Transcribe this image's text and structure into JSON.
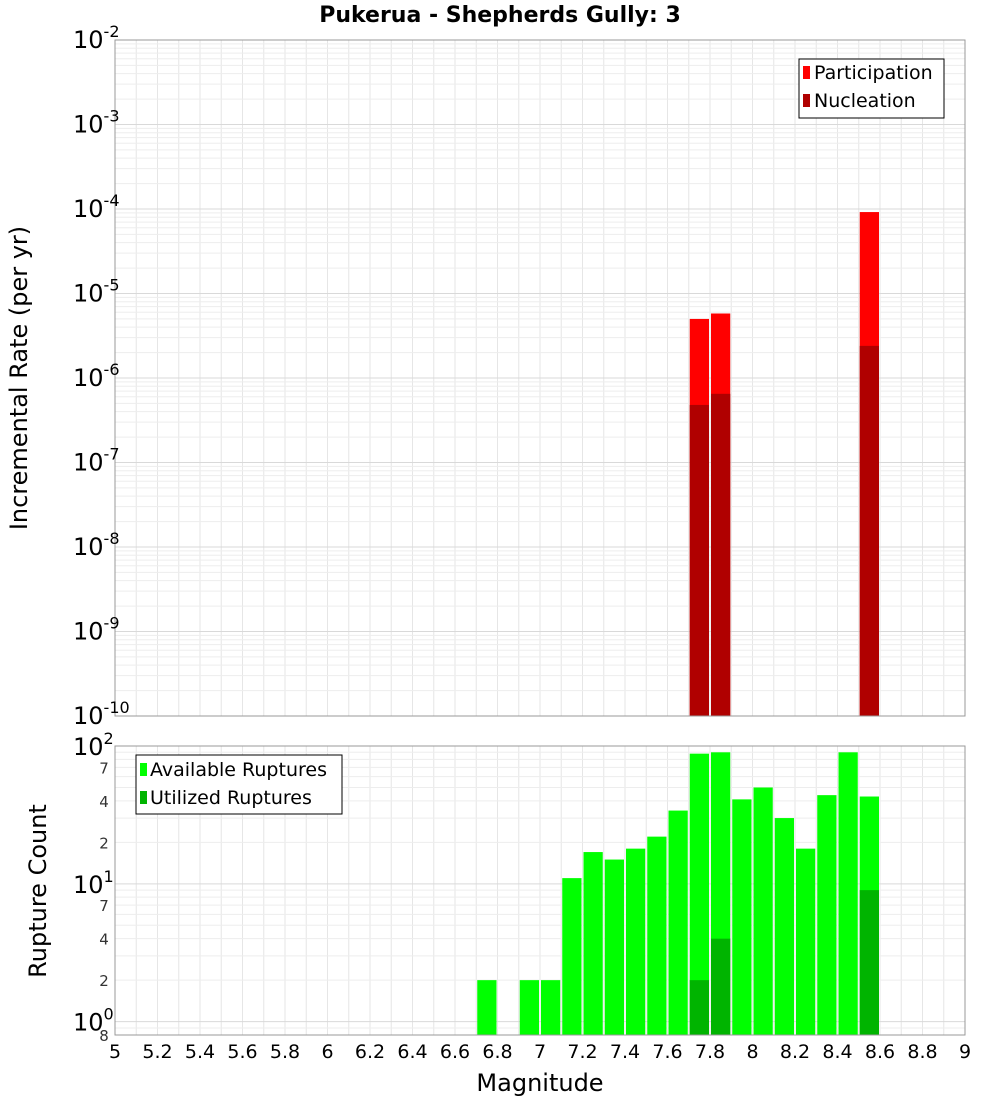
{
  "chart_data": [
    {
      "id": "rate",
      "type": "bar",
      "title": "Pukerua - Shepherds Gully: 3",
      "xlabel": "Magnitude",
      "ylabel": "Incremental Rate (per yr)",
      "yscale": "log",
      "xlim": [
        5,
        9
      ],
      "ylim": [
        1e-10,
        0.01
      ],
      "y_tick_bases": [
        "10",
        "10",
        "10",
        "10",
        "10",
        "10",
        "10",
        "10",
        "10"
      ],
      "y_tick_exponents": [
        "-2",
        "-3",
        "-4",
        "-5",
        "-6",
        "-7",
        "-8",
        "-9",
        "-10"
      ],
      "y_tick_values": [
        0.01,
        0.001,
        0.0001,
        1e-05,
        1e-06,
        1e-07,
        1e-08,
        1e-09,
        1e-10
      ],
      "legend": {
        "position": "top-right"
      },
      "series": [
        {
          "name": "Participation",
          "color": "#ff0000",
          "x": [
            7.75,
            7.85,
            8.55
          ],
          "values": [
            5e-06,
            5.8e-06,
            9.2e-05
          ]
        },
        {
          "name": "Nucleation",
          "color": "#b00000",
          "x": [
            7.75,
            7.85,
            8.55
          ],
          "values": [
            4.8e-07,
            6.5e-07,
            2.4e-06
          ]
        }
      ]
    },
    {
      "id": "count",
      "type": "bar",
      "xlabel": "Magnitude",
      "ylabel": "Rupture Count",
      "yscale": "log",
      "xlim": [
        5,
        9
      ],
      "ylim": [
        0.8,
        100
      ],
      "x_ticks": [
        "5",
        "5.2",
        "5.4",
        "5.6",
        "5.8",
        "6",
        "6.2",
        "6.4",
        "6.6",
        "6.8",
        "7",
        "7.2",
        "7.4",
        "7.6",
        "7.8",
        "8",
        "8.2",
        "8.4",
        "8.6",
        "8.8",
        "9"
      ],
      "y_major_bases": [
        "10",
        "10",
        "10"
      ],
      "y_major_exponents": [
        "2",
        "1",
        "0"
      ],
      "y_major_values": [
        100,
        10,
        1
      ],
      "y_minor_labels": [
        "7",
        "4",
        "2",
        "7",
        "4",
        "2",
        "8"
      ],
      "y_minor_values": [
        70,
        40,
        20,
        7,
        4,
        2,
        0.8
      ],
      "legend": {
        "position": "top-left"
      },
      "series": [
        {
          "name": "Available Ruptures",
          "color": "#00ff00",
          "x": [
            6.75,
            6.95,
            7.05,
            7.15,
            7.25,
            7.35,
            7.45,
            7.55,
            7.65,
            7.75,
            7.85,
            7.95,
            8.05,
            8.15,
            8.25,
            8.35,
            8.45,
            8.55
          ],
          "values": [
            2,
            2,
            2,
            11,
            17,
            15,
            18,
            22,
            34,
            88,
            90,
            41,
            50,
            30,
            18,
            44,
            90,
            43
          ]
        },
        {
          "name": "Utilized Ruptures",
          "color": "#00b400",
          "x": [
            7.75,
            7.85,
            8.55
          ],
          "values": [
            2,
            4,
            9
          ]
        }
      ]
    }
  ]
}
